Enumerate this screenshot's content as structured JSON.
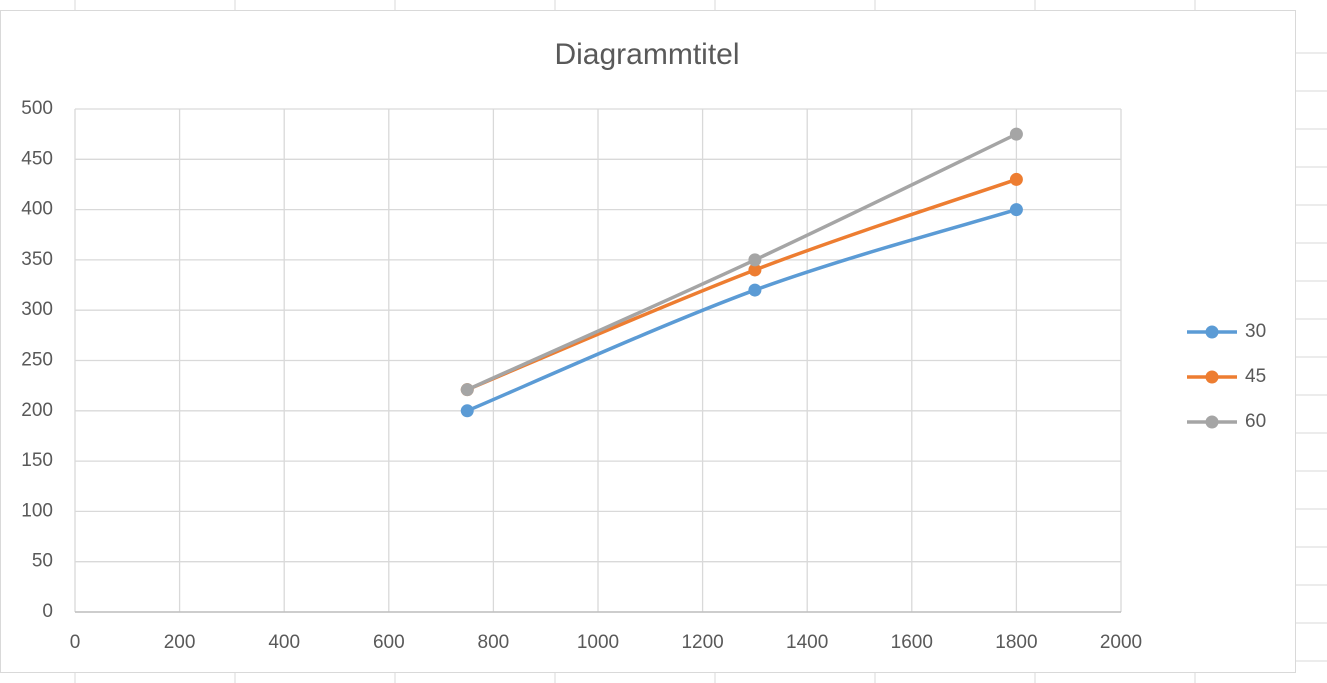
{
  "chart_data": {
    "type": "scatter",
    "title": "Diagrammtitel",
    "x": [
      750,
      1300,
      1800
    ],
    "series": [
      {
        "name": "30",
        "color": "#5b9bd5",
        "values": [
          200,
          320,
          400
        ]
      },
      {
        "name": "45",
        "color": "#ed7d31",
        "values": [
          221,
          340,
          430
        ]
      },
      {
        "name": "60",
        "color": "#a5a5a5",
        "values": [
          221,
          350,
          475
        ]
      }
    ],
    "xlim": [
      0,
      2000
    ],
    "xticks": [
      0,
      200,
      400,
      600,
      800,
      1000,
      1200,
      1400,
      1600,
      1800,
      2000
    ],
    "ylim": [
      0,
      500
    ],
    "yticks": [
      0,
      50,
      100,
      150,
      200,
      250,
      300,
      350,
      400,
      450,
      500
    ],
    "grid": true,
    "smooth": true,
    "legend": "right"
  }
}
